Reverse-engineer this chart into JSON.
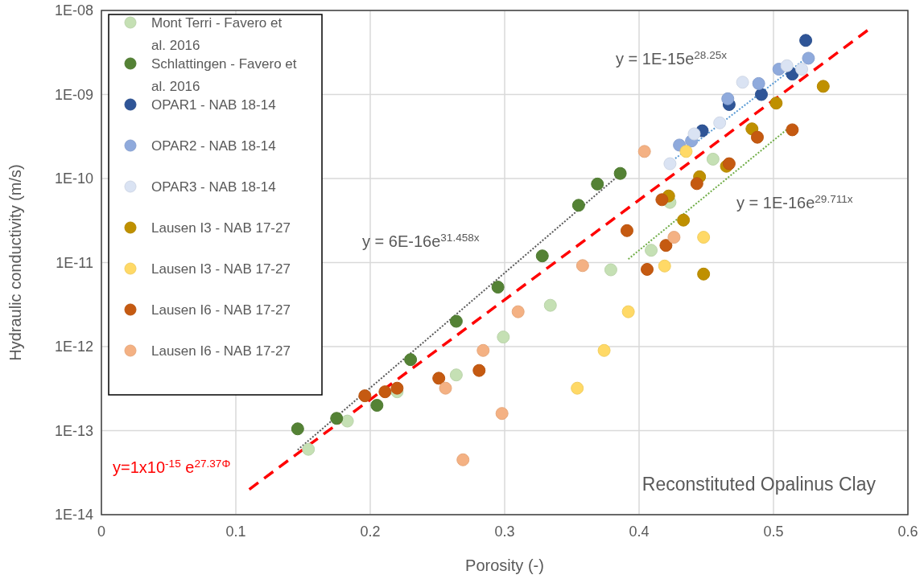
{
  "chart_data": {
    "type": "scatter",
    "xlabel": "Porosity (-)",
    "ylabel": "Hydraulic conductivity (m/s)",
    "xlim": [
      0,
      0.6
    ],
    "xticks": [
      0,
      0.1,
      0.2,
      0.3,
      0.4,
      0.5,
      0.6
    ],
    "ylim": [
      1e-14,
      1e-08
    ],
    "yticks": [
      {
        "value": 1e-14,
        "label": "1E-14"
      },
      {
        "value": 1e-13,
        "label": "1E-13"
      },
      {
        "value": 1e-12,
        "label": "1E-12"
      },
      {
        "value": 1e-11,
        "label": "1E-11"
      },
      {
        "value": 1e-10,
        "label": "1E-10"
      },
      {
        "value": 1e-09,
        "label": "1E-09"
      },
      {
        "value": 1e-08,
        "label": "1E-08"
      }
    ],
    "log": "y",
    "grid": true,
    "legend": "top left",
    "marker": "circle",
    "annotations": [
      "Reconstituted Opalinus Clay",
      "y = 1E-15e$^{28.25x}$",
      "y = 1E-16e$^{29.711x}$"
    ],
    "series": [
      {
        "name": "Mont Terri - Favero et al. 2016",
        "color": "#c5e0b4",
        "x": [
          0.154,
          0.183,
          0.22,
          0.264,
          0.299,
          0.334,
          0.379,
          0.409,
          0.423,
          0.455
        ],
        "values": [
          6e-14,
          1.3e-13,
          2.9e-13,
          4.6e-13,
          1.3e-12,
          3.1e-12,
          8.2e-12,
          1.4e-11,
          5.2e-11,
          1.7e-10
        ]
      },
      {
        "name": "Schlattingen - Favero et al. 2016",
        "color": "#548235",
        "x": [
          0.146,
          0.175,
          0.205,
          0.23,
          0.264,
          0.295,
          0.328,
          0.355,
          0.369,
          0.386
        ],
        "values": [
          1.05e-13,
          1.4e-13,
          2e-13,
          7e-13,
          2e-12,
          5.1e-12,
          1.2e-11,
          4.8e-11,
          8.6e-11,
          1.15e-10
        ]
      },
      {
        "name": "OPAR1 - NAB 18-14",
        "color": "#2f5597",
        "x": [
          0.447,
          0.467,
          0.491,
          0.514,
          0.524
        ],
        "values": [
          3.7e-10,
          7.6e-10,
          1e-09,
          1.75e-09,
          4.4e-09
        ]
      },
      {
        "name": "OPAR2 - NAB 18-14",
        "color": "#8faadc",
        "x": [
          0.43,
          0.439,
          0.466,
          0.489,
          0.504,
          0.526
        ],
        "values": [
          2.5e-10,
          2.8e-10,
          8.9e-10,
          1.35e-09,
          2e-09,
          2.7e-09
        ]
      },
      {
        "name": "OPAR3 - NAB 18-14",
        "color": "#dae3f3",
        "x": [
          0.423,
          0.441,
          0.46,
          0.477,
          0.51,
          0.521
        ],
        "values": [
          1.5e-10,
          3.4e-10,
          4.6e-10,
          1.4e-09,
          2.2e-09,
          2e-09
        ]
      },
      {
        "name": "Lausen I3 - NAB 17-27",
        "color": "#bf9000",
        "x": [
          0.422,
          0.433,
          0.445,
          0.448,
          0.465,
          0.484,
          0.502,
          0.537
        ],
        "values": [
          6.2e-11,
          3.2e-11,
          1.05e-10,
          7.3e-12,
          1.4e-10,
          3.9e-10,
          7.9e-10,
          1.25e-09
        ]
      },
      {
        "name": "Lausen I3 - NAB 17-27",
        "color": "#ffd966",
        "x": [
          0.354,
          0.374,
          0.392,
          0.419,
          0.435,
          0.448
        ],
        "values": [
          3.2e-13,
          9e-13,
          2.6e-12,
          9.1e-12,
          2.1e-10,
          2e-11
        ]
      },
      {
        "name": "Lausen I6 - NAB 17-27",
        "color": "#c55a11",
        "x": [
          0.196,
          0.211,
          0.22,
          0.251,
          0.281,
          0.391,
          0.406,
          0.417,
          0.42,
          0.443,
          0.467,
          0.488,
          0.514
        ],
        "values": [
          2.6e-13,
          2.9e-13,
          3.2e-13,
          4.2e-13,
          5.2e-13,
          2.4e-11,
          8.3e-12,
          5.6e-11,
          1.6e-11,
          8.7e-11,
          1.5e-10,
          3.1e-10,
          3.8e-10
        ]
      },
      {
        "name": "Lausen I6 - NAB 17-27",
        "color": "#f4b183",
        "x": [
          0.256,
          0.269,
          0.284,
          0.298,
          0.31,
          0.358,
          0.404,
          0.426
        ],
        "values": [
          3.2e-13,
          4.5e-14,
          9e-13,
          1.6e-13,
          2.6e-12,
          9.2e-12,
          2.1e-10,
          2e-11
        ]
      },
      {
        "name": "y = 6E-16e$^{31.458x}$",
        "type": "line",
        "marker": "none",
        "line_style": "dotted",
        "color": "#595959",
        "x": [
          0.146,
          0.386
        ],
        "values": [
          5.9e-14,
          1.13e-10
        ]
      },
      {
        "type": "line",
        "marker": "none",
        "line_style": "dotted",
        "color": "#5b9bd5",
        "x": [
          0.425,
          0.525
        ],
        "values": [
          1.64e-10,
          2.76e-09
        ]
      },
      {
        "type": "line",
        "marker": "none",
        "line_style": "dotted",
        "color": "#70ad47",
        "x": [
          0.392,
          0.513
        ],
        "values": [
          1.1e-11,
          4.2e-10
        ]
      },
      {
        "name": "y=1x10$^{-15}$ e$^{27.37Φ}$",
        "type": "line",
        "marker": "none",
        "line_style": "dashed",
        "color": "#ff0000",
        "x": [
          0.11,
          0.57
        ],
        "values": [
          2e-14,
          5.8e-09
        ]
      }
    ]
  }
}
